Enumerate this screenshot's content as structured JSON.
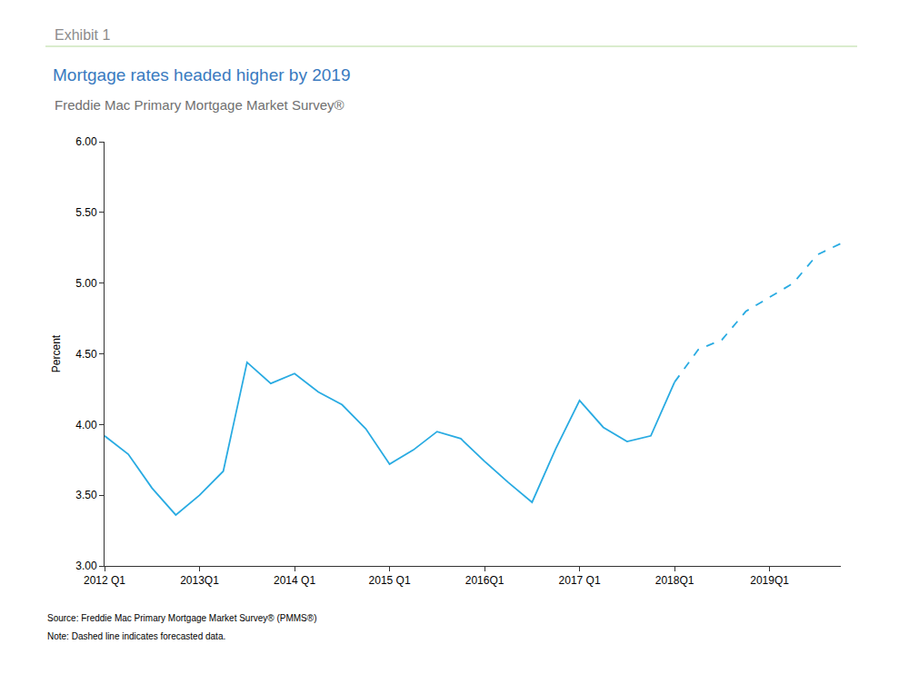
{
  "chart_data": {
    "type": "line",
    "title": "Mortgage rates headed higher by 2019",
    "subtitle": "Freddie Mac Primary Mortgage Market Survey®",
    "annotations": [
      "Exhibit 1",
      "Source: Freddie Mac Primary Mortgage Market Survey® (PMMS®)",
      "Note: Dashed line indicates forecasted data."
    ],
    "y_label": "Percent",
    "categories": [
      "2012 Q1",
      null,
      null,
      null,
      "2013Q1",
      null,
      null,
      null,
      "2014 Q1",
      null,
      null,
      null,
      "2015 Q1",
      null,
      null,
      null,
      "2016Q1",
      null,
      null,
      null,
      "2017 Q1",
      null,
      null,
      null,
      "2018Q1",
      null,
      null,
      null,
      "2019Q1",
      null,
      null,
      null
    ],
    "series": [
      {
        "color": "#29abe2",
        "line_style": "solid",
        "values": [
          3.92,
          3.79,
          3.55,
          3.36,
          3.5,
          3.67,
          4.44,
          4.29,
          4.36,
          4.23,
          4.14,
          3.97,
          3.72,
          3.82,
          3.95,
          3.9,
          3.74,
          3.59,
          3.45,
          3.83,
          4.17,
          3.98,
          3.88,
          3.92,
          4.3,
          null,
          null,
          null,
          null,
          null,
          null,
          null
        ]
      },
      {
        "color": "#29abe2",
        "line_style": "dashed",
        "values": [
          null,
          null,
          null,
          null,
          null,
          null,
          null,
          null,
          null,
          null,
          null,
          null,
          null,
          null,
          null,
          null,
          null,
          null,
          null,
          null,
          null,
          null,
          null,
          null,
          4.3,
          4.53,
          4.6,
          4.8,
          4.9,
          5.0,
          5.2,
          5.28
        ]
      }
    ],
    "ylim": [
      3,
      6
    ],
    "yticks": [
      {
        "value": 3,
        "label": "3.00"
      },
      {
        "value": 3.5,
        "label": "3.50"
      },
      {
        "value": 4,
        "label": "4.00"
      },
      {
        "value": 4.5,
        "label": "4.50"
      },
      {
        "value": 5,
        "label": "5.00"
      },
      {
        "value": 5.5,
        "label": "5.50"
      },
      {
        "value": 6,
        "label": "6.00"
      }
    ],
    "grid": false
  }
}
